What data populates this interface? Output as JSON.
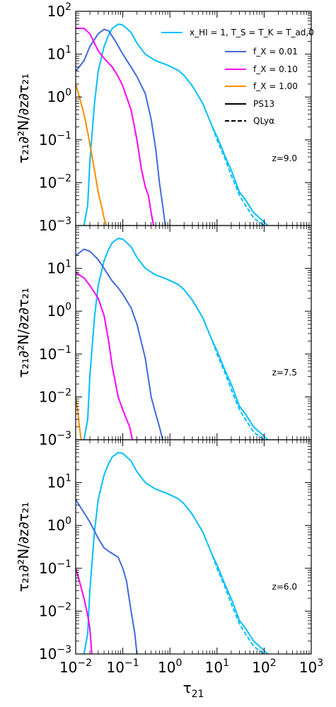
{
  "chart_data": [
    {
      "type": "line",
      "panel_label": "z=9.0",
      "xlabel": "τ21",
      "ylabel": "τ21∂²N/∂z∂τ21",
      "xscale": "log",
      "yscale": "log",
      "xlim": [
        0.01,
        1000
      ],
      "ylim": [
        0.001,
        100
      ],
      "legend": {
        "position": "top-right",
        "entries": [
          "x_HI = 1, T_S = T_K = T_ad,0",
          "f_X = 0.01",
          "f_X = 0.10",
          "f_X = 1.00",
          "PS13",
          "QLyα"
        ]
      },
      "series": [
        {
          "name": "x_HI = 1, T_S = T_K = T_ad,0",
          "color": "#00bfff",
          "style": "solid",
          "x": [
            0.015,
            0.018,
            0.02,
            0.025,
            0.03,
            0.04,
            0.05,
            0.06,
            0.08,
            0.1,
            0.15,
            0.2,
            0.3,
            0.5,
            0.8,
            1.0,
            1.5,
            2,
            3,
            5,
            8,
            10,
            15,
            20,
            30,
            40,
            60,
            80,
            100,
            120
          ],
          "y": [
            0.001,
            0.003,
            0.03,
            0.7,
            4,
            15,
            28,
            40,
            50,
            48,
            32,
            18,
            10,
            7,
            5.8,
            5.2,
            4.2,
            3.2,
            1.8,
            0.7,
            0.2,
            0.12,
            0.04,
            0.02,
            0.006,
            0.004,
            0.002,
            0.0015,
            0.0012,
            0.001
          ]
        },
        {
          "name": "x_HI = 1, T_S = T_K = T_ad,0",
          "color": "#00bfff",
          "style": "dashed",
          "x": [
            8,
            10,
            15,
            20,
            30,
            40,
            60,
            80,
            100
          ],
          "y": [
            0.2,
            0.1,
            0.035,
            0.015,
            0.005,
            0.003,
            0.0015,
            0.0012,
            0.001
          ]
        },
        {
          "name": "f_X = 0.01",
          "color": "#4169e1",
          "style": "solid",
          "x": [
            0.01,
            0.015,
            0.02,
            0.03,
            0.04,
            0.05,
            0.07,
            0.1,
            0.15,
            0.2,
            0.3,
            0.4,
            0.5,
            0.6,
            0.7,
            0.8
          ],
          "y": [
            4,
            7,
            15,
            30,
            38,
            35,
            20,
            10,
            5,
            3,
            1.2,
            0.3,
            0.06,
            0.01,
            0.003,
            0.001
          ]
        },
        {
          "name": "f_X = 0.10",
          "color": "#ff00ff",
          "style": "solid",
          "x": [
            0.01,
            0.015,
            0.02,
            0.03,
            0.04,
            0.06,
            0.08,
            0.1,
            0.15,
            0.2,
            0.25,
            0.3,
            0.35,
            0.4,
            0.45
          ],
          "y": [
            40,
            40,
            30,
            12,
            8,
            5,
            3,
            1.8,
            0.5,
            0.1,
            0.02,
            0.008,
            0.005,
            0.002,
            0.001
          ]
        },
        {
          "name": "f_X = 1.00",
          "color": "#ff8c00",
          "style": "solid",
          "x": [
            0.01,
            0.012,
            0.015,
            0.018,
            0.02,
            0.025,
            0.03,
            0.035,
            0.04,
            0.045
          ],
          "y": [
            2,
            1,
            0.4,
            0.15,
            0.08,
            0.02,
            0.006,
            0.003,
            0.0015,
            0.001
          ]
        }
      ]
    },
    {
      "type": "line",
      "panel_label": "z=7.5",
      "xlabel": "τ21",
      "ylabel": "τ21∂²N/∂z∂τ21",
      "xscale": "log",
      "yscale": "log",
      "xlim": [
        0.01,
        1000
      ],
      "ylim": [
        0.001,
        100
      ],
      "series": [
        {
          "name": "x_HI = 1, T_S = T_K = T_ad,0",
          "color": "#00bfff",
          "style": "solid",
          "x": [
            0.015,
            0.018,
            0.02,
            0.025,
            0.03,
            0.04,
            0.05,
            0.06,
            0.08,
            0.1,
            0.15,
            0.2,
            0.3,
            0.5,
            0.8,
            1.0,
            1.5,
            2,
            3,
            5,
            8,
            10,
            15,
            20,
            30,
            40,
            60,
            80,
            100,
            120
          ],
          "y": [
            0.001,
            0.003,
            0.03,
            0.7,
            4,
            15,
            28,
            40,
            50,
            48,
            32,
            18,
            10,
            7,
            5.8,
            5.2,
            4.2,
            3.2,
            1.8,
            0.7,
            0.2,
            0.12,
            0.04,
            0.02,
            0.006,
            0.004,
            0.002,
            0.0015,
            0.0012,
            0.001
          ]
        },
        {
          "name": "x_HI = 1, T_S = T_K = T_ad,0",
          "color": "#00bfff",
          "style": "dashed",
          "x": [
            8,
            10,
            15,
            20,
            30,
            40,
            60,
            80,
            100
          ],
          "y": [
            0.2,
            0.1,
            0.035,
            0.015,
            0.005,
            0.003,
            0.0015,
            0.0012,
            0.001
          ]
        },
        {
          "name": "f_X = 0.01",
          "color": "#4169e1",
          "style": "solid",
          "x": [
            0.01,
            0.015,
            0.02,
            0.03,
            0.04,
            0.06,
            0.08,
            0.1,
            0.15,
            0.2,
            0.3,
            0.4,
            0.5,
            0.6,
            0.7
          ],
          "y": [
            20,
            28,
            25,
            16,
            10,
            5,
            3.5,
            2.5,
            1.2,
            0.5,
            0.08,
            0.01,
            0.004,
            0.002,
            0.001
          ]
        },
        {
          "name": "f_X = 0.10",
          "color": "#ff00ff",
          "style": "solid",
          "x": [
            0.01,
            0.015,
            0.02,
            0.03,
            0.04,
            0.05,
            0.06,
            0.08,
            0.1,
            0.12,
            0.14,
            0.16
          ],
          "y": [
            8,
            6,
            4,
            2,
            0.8,
            0.2,
            0.05,
            0.01,
            0.005,
            0.003,
            0.002,
            0.001
          ]
        },
        {
          "name": "f_X = 1.00",
          "color": "#ff8c00",
          "style": "solid",
          "x": [
            0.01,
            0.011,
            0.012,
            0.013
          ],
          "y": [
            0.01,
            0.005,
            0.002,
            0.001
          ]
        }
      ]
    },
    {
      "type": "line",
      "panel_label": "z=6.0",
      "xlabel": "τ21",
      "ylabel": "τ21∂²N/∂z∂τ21",
      "xscale": "log",
      "yscale": "log",
      "xlim": [
        0.01,
        1000
      ],
      "ylim": [
        0.001,
        100
      ],
      "series": [
        {
          "name": "x_HI = 1, T_S = T_K = T_ad,0",
          "color": "#00bfff",
          "style": "solid",
          "x": [
            0.015,
            0.018,
            0.02,
            0.025,
            0.03,
            0.04,
            0.05,
            0.06,
            0.08,
            0.1,
            0.15,
            0.2,
            0.3,
            0.5,
            0.8,
            1.0,
            1.5,
            2,
            3,
            5,
            8,
            10,
            15,
            20,
            30,
            40,
            60,
            80,
            100,
            120
          ],
          "y": [
            0.001,
            0.003,
            0.03,
            0.7,
            4,
            15,
            28,
            40,
            50,
            48,
            32,
            18,
            10,
            7,
            5.8,
            5.2,
            4.2,
            3.2,
            1.8,
            0.7,
            0.2,
            0.12,
            0.04,
            0.02,
            0.006,
            0.004,
            0.002,
            0.0015,
            0.0012,
            0.001
          ]
        },
        {
          "name": "x_HI = 1, T_S = T_K = T_ad,0",
          "color": "#00bfff",
          "style": "dashed",
          "x": [
            8,
            10,
            15,
            20,
            30,
            40,
            60,
            80,
            100
          ],
          "y": [
            0.2,
            0.1,
            0.035,
            0.015,
            0.005,
            0.003,
            0.0015,
            0.0012,
            0.001
          ]
        },
        {
          "name": "f_X = 0.01",
          "color": "#4169e1",
          "style": "solid",
          "x": [
            0.01,
            0.015,
            0.02,
            0.03,
            0.04,
            0.05,
            0.06,
            0.08,
            0.1,
            0.12,
            0.15,
            0.18,
            0.2
          ],
          "y": [
            4,
            2,
            1.2,
            0.5,
            0.3,
            0.25,
            0.22,
            0.18,
            0.1,
            0.05,
            0.01,
            0.003,
            0.001
          ]
        },
        {
          "name": "f_X = 0.10",
          "color": "#ff00ff",
          "style": "solid",
          "x": [
            0.01,
            0.012,
            0.015,
            0.018,
            0.02,
            0.022
          ],
          "y": [
            0.1,
            0.05,
            0.02,
            0.008,
            0.004,
            0.001
          ]
        }
      ]
    }
  ],
  "figure": {
    "xticks": [
      "10",
      "10",
      "10",
      "10",
      "10",
      "10"
    ],
    "xtick_exps": [
      "−2",
      "−1",
      "0",
      "1",
      "2",
      "3"
    ],
    "yticks": [
      "10",
      "10",
      "10",
      "10",
      "10",
      "10"
    ],
    "ytick_exps": [
      "2",
      "1",
      "0",
      "−1",
      "−2",
      "−3"
    ],
    "xlabel": "τ",
    "xlabel_sub": "21",
    "ylabel": "τ₂₁∂²N/∂z∂τ₂₁",
    "legend_labels": [
      "x_HI = 1, T_S = T_K = T_ad,0",
      "f_X = 0.01",
      "f_X = 0.10",
      "f_X = 1.00",
      "PS13",
      "QLyα"
    ]
  }
}
